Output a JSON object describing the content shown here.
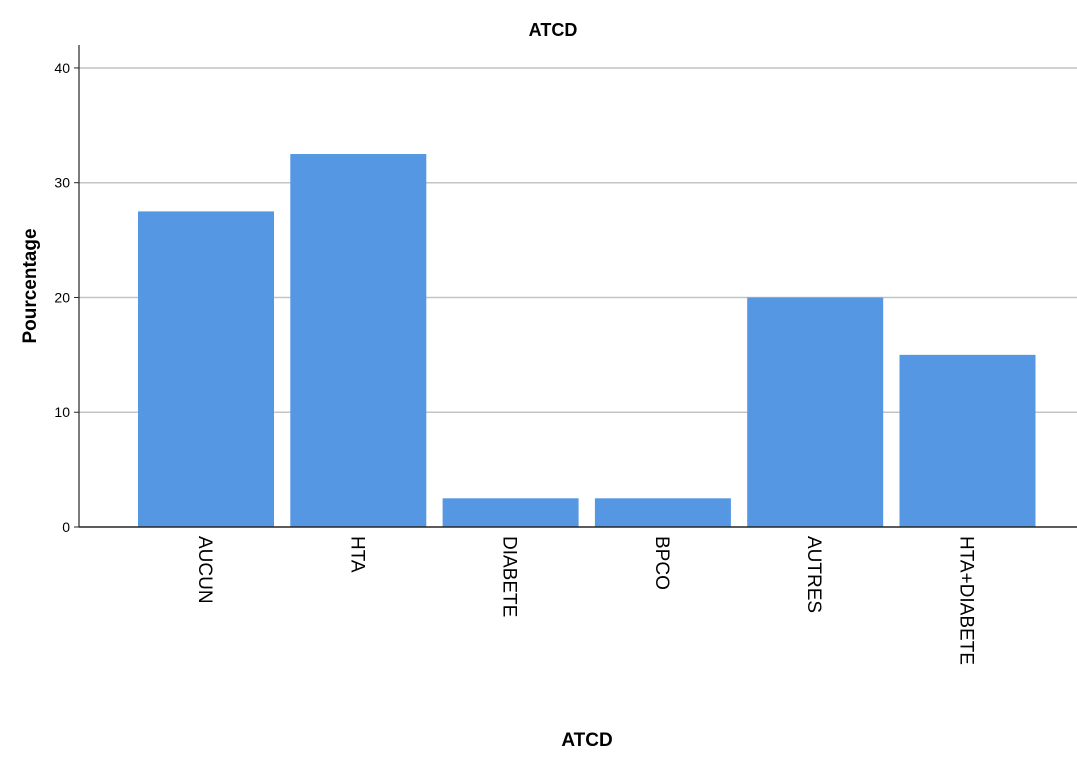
{
  "chart_data": {
    "type": "bar",
    "title": "ATCD",
    "xlabel": "ATCD",
    "ylabel": "Pourcentage",
    "categories": [
      "AUCUN",
      "HTA",
      "DIABETE",
      "BPCO",
      "AUTRES",
      "HTA+DIABETE"
    ],
    "values": [
      27.5,
      32.5,
      2.5,
      2.5,
      20,
      15
    ],
    "ylim": [
      0,
      42
    ],
    "yticks": [
      0,
      10,
      20,
      30,
      40
    ],
    "grid": true,
    "legend": "none",
    "bar_color": "#5597e3",
    "gridline_color": "#c4c4c4",
    "axis_color": "#262626",
    "text_color": "#000000"
  }
}
